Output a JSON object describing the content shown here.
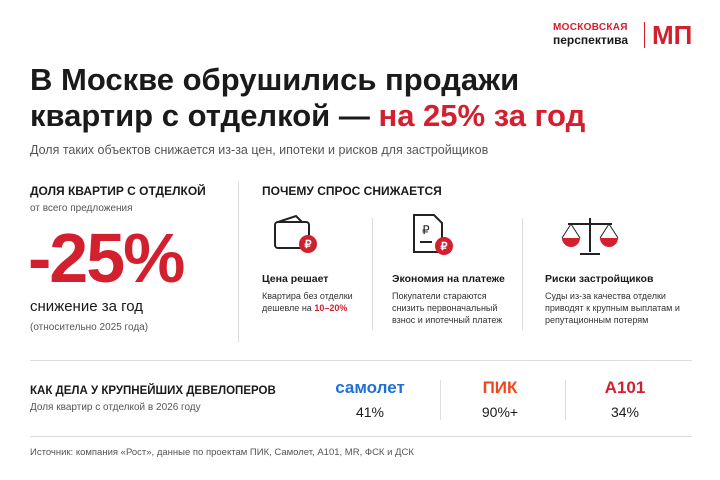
{
  "logo": {
    "top": "МОСКОВСКАЯ",
    "bottom": "перспектива",
    "mark": "МП"
  },
  "header": {
    "title_line1": "В Москве обрушились продажи",
    "title_line2": "квартир с отделкой —",
    "title_accent": "на 25% за год",
    "subtitle": "Доля таких объектов снижается из-за цен, ипотеки и рисков для застройщиков"
  },
  "share": {
    "heading": "ДОЛЯ КВАРТИР С ОТДЕЛКОЙ",
    "subheading": "от всего предложения",
    "value": "-25%",
    "caption": "снижение за год",
    "note": "(относительно 2025 года)"
  },
  "reasons": {
    "heading": "ПОЧЕМУ СПРОС СНИЖАЕТСЯ",
    "items": [
      {
        "title": "Цена решает",
        "text": "Квартира без отделки дешевле на",
        "accent": "10–20%"
      },
      {
        "title": "Экономия на платеже",
        "text": "Покупатели стараются снизить первоначальный взнос и ипотечный платеж"
      },
      {
        "title": "Риски застройщиков",
        "text": "Суды из-за качества отделки приводят к крупным выплатам и репутационным потерям"
      }
    ]
  },
  "developers": {
    "heading": "КАК ДЕЛА У КРУПНЕЙШИХ ДЕВЕЛОПЕРОВ",
    "subheading": "Доля квартир с отделкой в 2026 году",
    "items": [
      {
        "name": "самолет",
        "value": "41%"
      },
      {
        "name": "ПИК",
        "value": "90%+"
      },
      {
        "name": "A101",
        "value": "34%"
      }
    ]
  },
  "source": "Источник: компания «Рост», данные по проектам ПИК, Самолет, A101, MR, ФСК и ДСК"
}
